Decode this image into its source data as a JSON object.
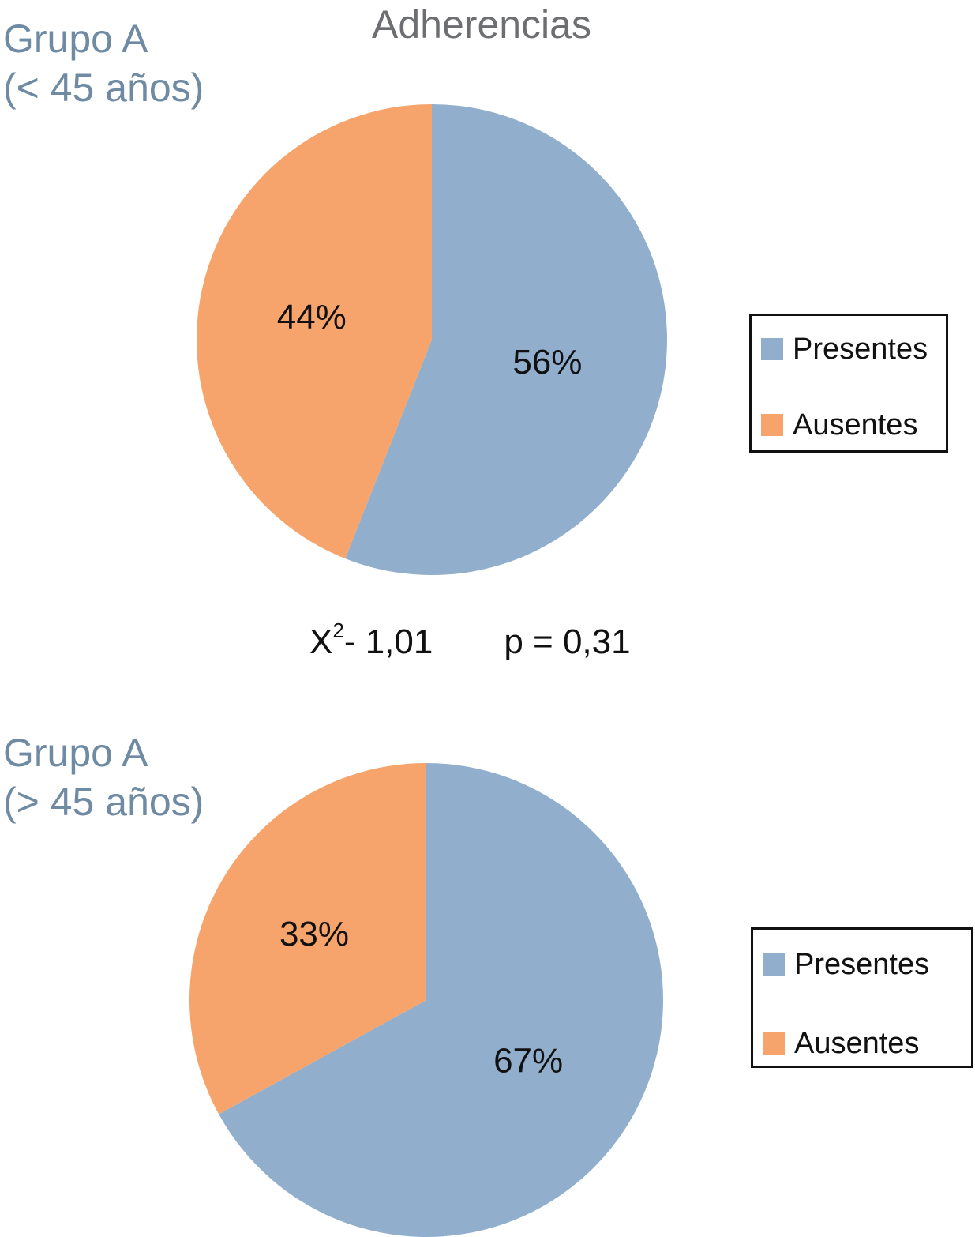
{
  "title": "Adherencias",
  "stats": {
    "chi_label": "X",
    "chi_sup": "2",
    "chi_value": "- 1,01",
    "p_value": "p = 0,31"
  },
  "colors": {
    "presentes": "#91afcd",
    "ausentes": "#f6a46b"
  },
  "chart_data": [
    {
      "type": "pie",
      "group": "Grupo A",
      "subgroup": "(< 45 años)",
      "slices": [
        {
          "label": "Presentes",
          "value": 56,
          "text": "56%"
        },
        {
          "label": "Ausentes",
          "value": 44,
          "text": "44%"
        }
      ],
      "legend": [
        "Presentes",
        "Ausentes"
      ],
      "legend_position": "right"
    },
    {
      "type": "pie",
      "group": "Grupo A",
      "subgroup": "(> 45 años)",
      "slices": [
        {
          "label": "Presentes",
          "value": 67,
          "text": "67%"
        },
        {
          "label": "Ausentes",
          "value": 33,
          "text": "33%"
        }
      ],
      "legend": [
        "Presentes",
        "Ausentes"
      ],
      "legend_position": "right"
    }
  ]
}
